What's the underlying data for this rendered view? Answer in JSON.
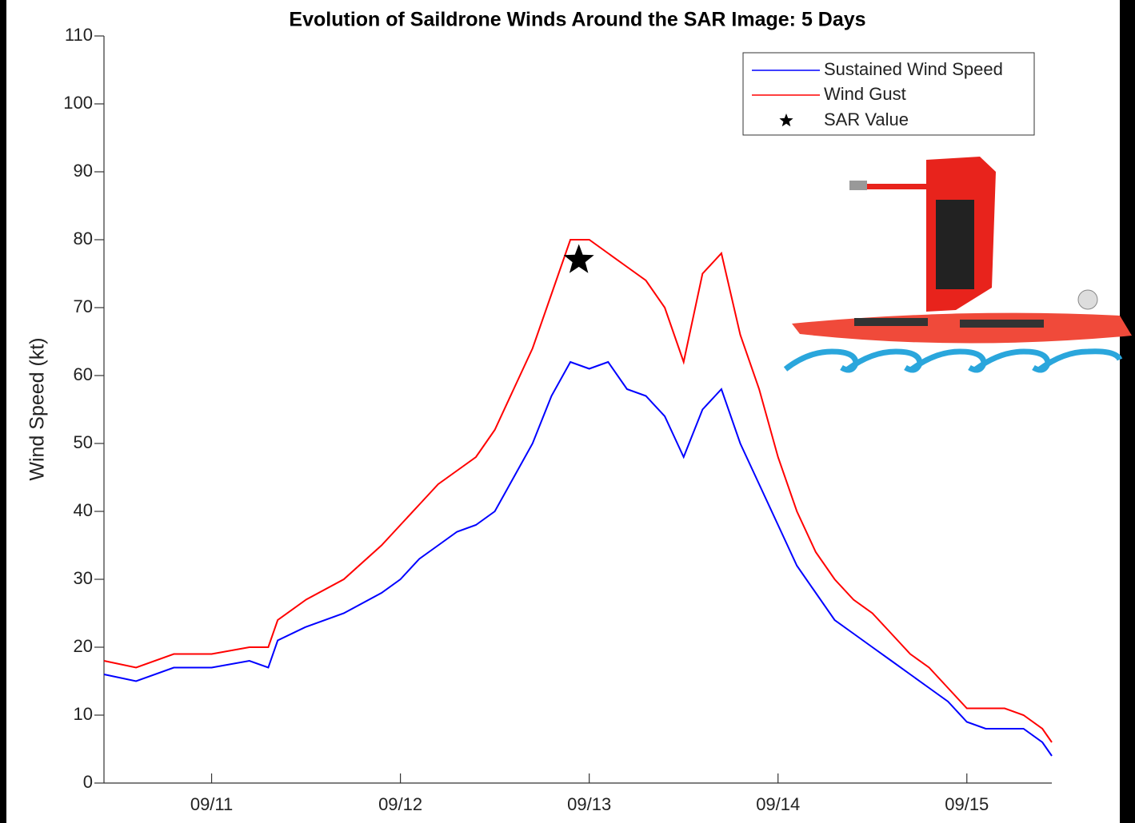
{
  "chart_data": {
    "type": "line",
    "title": "Evolution of Saildrone Winds Around the SAR Image: 5 Days",
    "y_label": "Wind Speed (kt)",
    "x": [
      10.43,
      10.6,
      10.8,
      11.0,
      11.2,
      11.3,
      11.35,
      11.5,
      11.7,
      11.9,
      12.0,
      12.1,
      12.2,
      12.3,
      12.4,
      12.5,
      12.6,
      12.7,
      12.8,
      12.9,
      13.0,
      13.1,
      13.2,
      13.3,
      13.4,
      13.5,
      13.6,
      13.7,
      13.8,
      13.9,
      14.0,
      14.1,
      14.2,
      14.3,
      14.4,
      14.5,
      14.6,
      14.7,
      14.8,
      14.9,
      15.0,
      15.1,
      15.2,
      15.3,
      15.4,
      15.45
    ],
    "series": [
      {
        "name": "Sustained Wind Speed",
        "color": "#0000ff",
        "values": [
          16,
          15,
          17,
          17,
          18,
          17,
          21,
          23,
          25,
          28,
          30,
          33,
          35,
          37,
          38,
          40,
          45,
          50,
          57,
          62,
          61,
          62,
          58,
          57,
          54,
          48,
          55,
          58,
          50,
          44,
          38,
          32,
          28,
          24,
          22,
          20,
          18,
          16,
          14,
          12,
          9,
          8,
          8,
          8,
          6,
          4
        ]
      },
      {
        "name": "Wind Gust",
        "color": "#ff0000",
        "values": [
          18,
          17,
          19,
          19,
          20,
          20,
          24,
          27,
          30,
          35,
          38,
          41,
          44,
          46,
          48,
          52,
          58,
          64,
          72,
          80,
          80,
          78,
          76,
          74,
          70,
          62,
          75,
          78,
          66,
          58,
          48,
          40,
          34,
          30,
          27,
          25,
          22,
          19,
          17,
          14,
          11,
          11,
          11,
          10,
          8,
          6
        ]
      },
      {
        "name": "SAR Value",
        "color": "#000000",
        "marker": "star",
        "x": [
          12.945
        ],
        "values": [
          77
        ]
      }
    ],
    "xlim": [
      10.43,
      15.45
    ],
    "ylim": [
      0,
      110
    ],
    "xticks": [
      {
        "value": 11,
        "label": "09/11"
      },
      {
        "value": 12,
        "label": "09/12"
      },
      {
        "value": 13,
        "label": "09/13"
      },
      {
        "value": 14,
        "label": "09/14"
      },
      {
        "value": 15,
        "label": "09/15"
      }
    ],
    "yticks": [
      0,
      10,
      20,
      30,
      40,
      50,
      60,
      70,
      80,
      90,
      100,
      110
    ],
    "legend": "top-right",
    "grid": false
  }
}
